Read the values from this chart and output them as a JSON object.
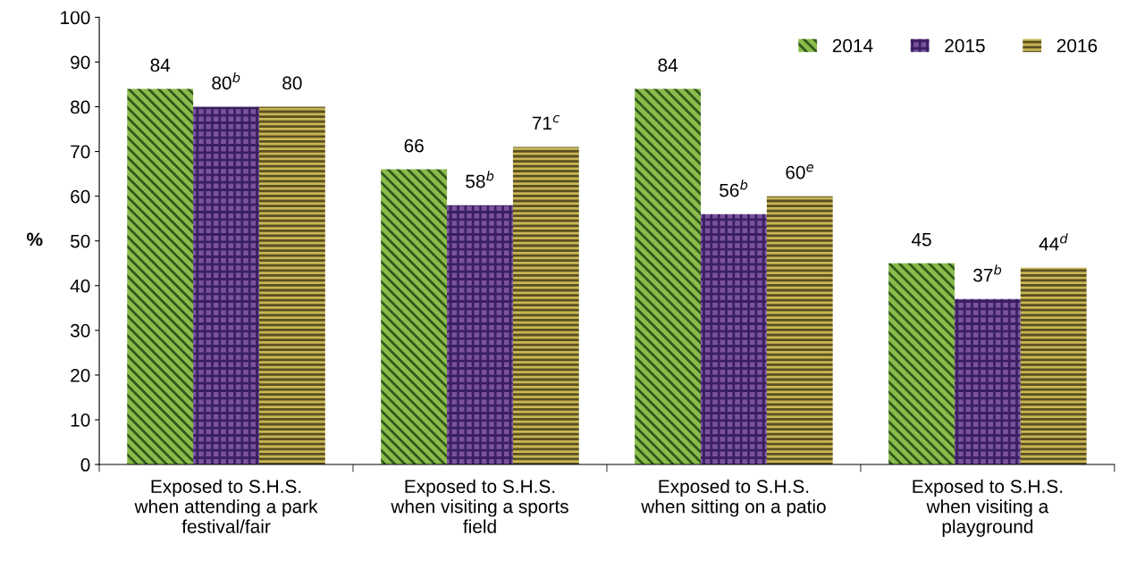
{
  "chart_data": {
    "type": "bar",
    "ylabel": "%",
    "categories": [
      "Exposed to S.H.S.\nwhen attending a park\nfestival/fair",
      "Exposed to S.H.S.\nwhen visiting a sports\nfield",
      "Exposed to S.H.S.\nwhen sitting on a patio",
      "Exposed to S.H.S.\nwhen visiting a\nplayground"
    ],
    "series": [
      {
        "name": "2014",
        "color": "#8cbb4c",
        "values": [
          84,
          66,
          84,
          45
        ],
        "value_labels": [
          "84",
          "66",
          "84",
          "45"
        ]
      },
      {
        "name": "2015",
        "color": "#7b52a0",
        "values": [
          80,
          58,
          56,
          37
        ],
        "value_labels": [
          "80$^{b}$",
          "58$^{b}$",
          "56$^{b}$",
          "37$^{b}$"
        ]
      },
      {
        "name": "2016",
        "color": "#c9b655",
        "values": [
          80,
          71,
          60,
          44
        ],
        "value_labels": [
          "80",
          "71$^{c}$",
          "60$^{e}$",
          "44$^{d}$"
        ]
      }
    ],
    "ylim": [
      0,
      100
    ],
    "yticks": [
      0,
      10,
      20,
      30,
      40,
      50,
      60,
      70,
      80,
      90,
      100
    ],
    "grid": false,
    "legend": "top right"
  }
}
